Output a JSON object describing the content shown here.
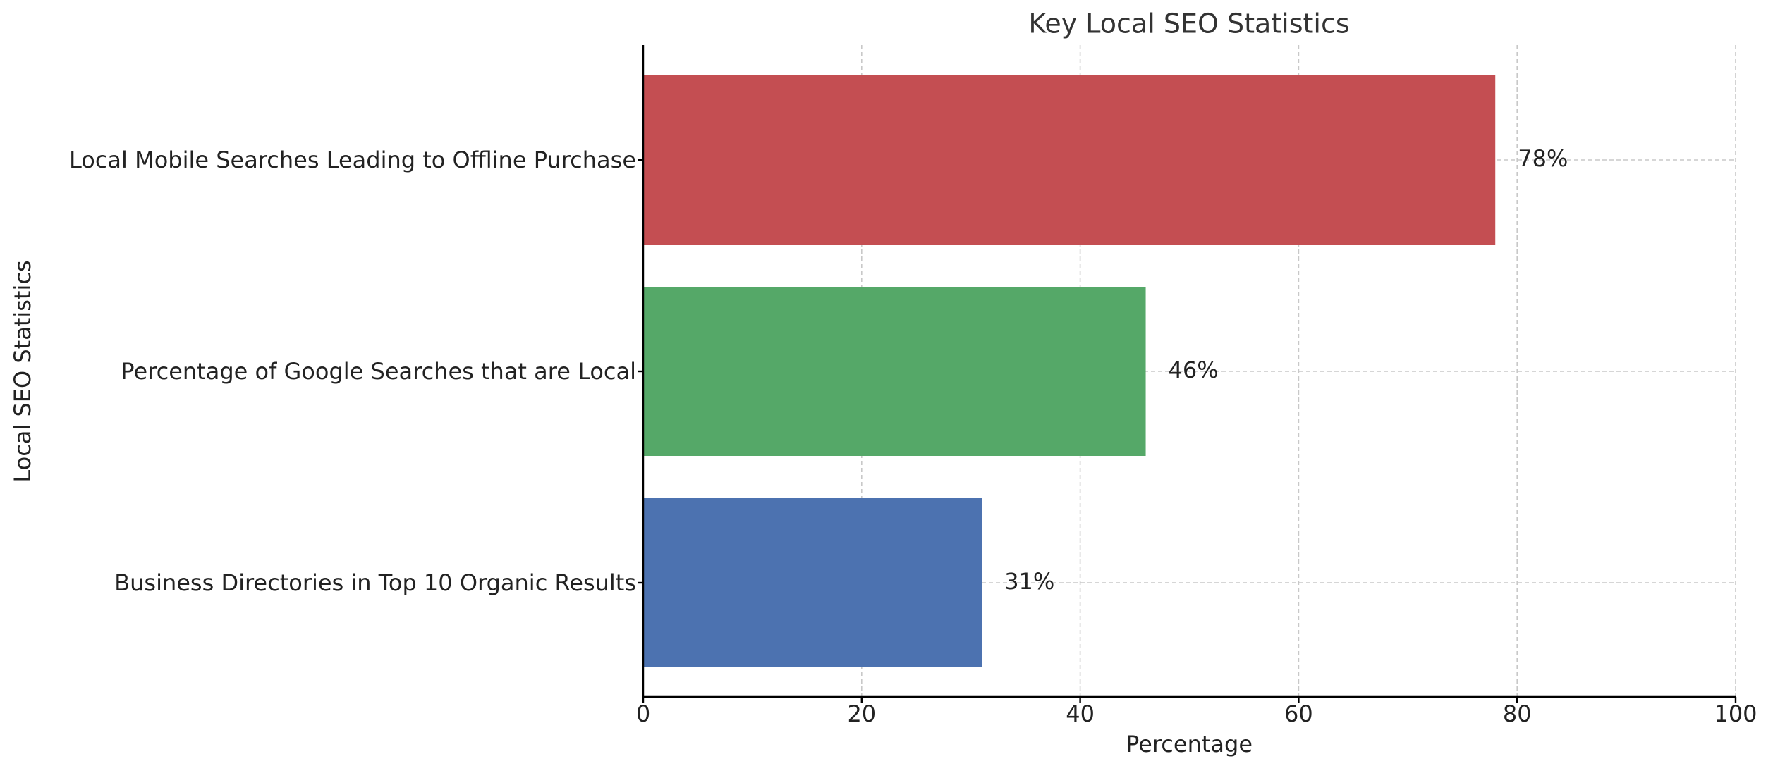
{
  "chart_data": {
    "type": "barh",
    "title": "Key Local SEO Statistics",
    "x_label": "Percentage",
    "y_label": "Local SEO Statistics",
    "categories": [
      "Business Directories in Top 10 Organic Results",
      "Percentage of Google Searches that are Local",
      "Local Mobile Searches Leading to Offline Purchase"
    ],
    "values": [
      31,
      46,
      78
    ],
    "value_labels": [
      "31%",
      "46%",
      "78%"
    ],
    "colors": [
      "#4c72b0",
      "#55a868",
      "#c44e52"
    ],
    "xlim": [
      0,
      100
    ],
    "xticks": [
      0,
      20,
      40,
      60,
      80,
      100
    ],
    "grid": true
  }
}
